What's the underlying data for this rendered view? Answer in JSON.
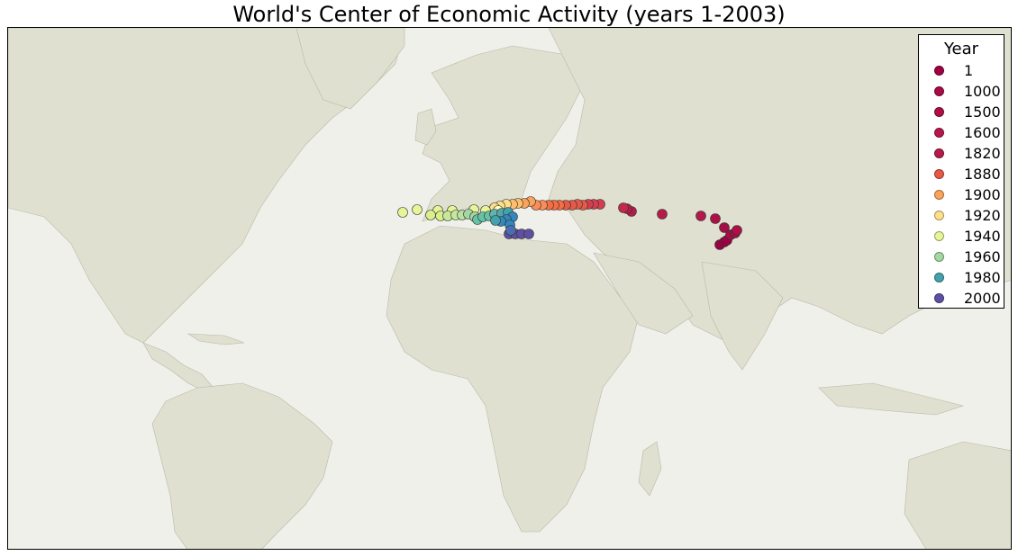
{
  "title": "World's Center of Economic Activity (years 1-2003)",
  "colors": {
    "ocean": "#f0f0ea",
    "land": "#e0e0d0",
    "border": "#b8b8a8"
  },
  "legend": {
    "title": "Year",
    "items": [
      {
        "label": "1",
        "color": "#9e0142"
      },
      {
        "label": "1000",
        "color": "#a50d45"
      },
      {
        "label": "1500",
        "color": "#ad0f46"
      },
      {
        "label": "1600",
        "color": "#b5184a"
      },
      {
        "label": "1820",
        "color": "#b51b4a"
      },
      {
        "label": "1880",
        "color": "#e45a46"
      },
      {
        "label": "1900",
        "color": "#fba35b"
      },
      {
        "label": "1920",
        "color": "#fee08b"
      },
      {
        "label": "1940",
        "color": "#e6f598"
      },
      {
        "label": "1960",
        "color": "#a4d8a3"
      },
      {
        "label": "1980",
        "color": "#44a2ad"
      },
      {
        "label": "2000",
        "color": "#5e4fa2"
      }
    ]
  }
}
